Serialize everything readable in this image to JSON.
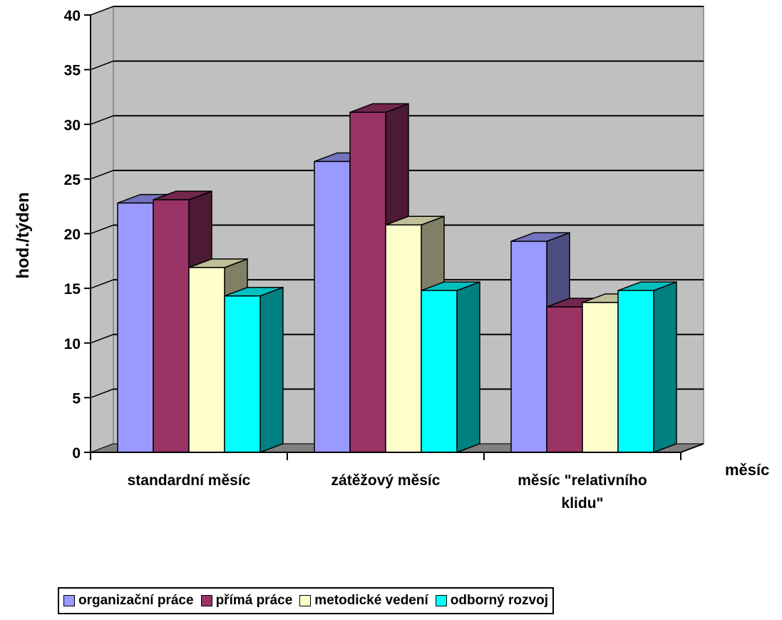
{
  "chart_data": {
    "type": "bar",
    "title": "",
    "xlabel": "měsíc",
    "ylabel": "hod./týden",
    "ylim": [
      0,
      40
    ],
    "yticks": [
      "0",
      "5",
      "10",
      "15",
      "20",
      "25",
      "30",
      "35",
      "40"
    ],
    "categories": [
      "standardní měsíc",
      "zátěžový měsíc",
      "měsíc \"relativního klidu\""
    ],
    "series": [
      {
        "name": "organizační práce",
        "values": [
          22.8,
          26.6,
          19.3
        ],
        "color": "#9999ff",
        "side": "#4d4d80",
        "top": "#7373bf"
      },
      {
        "name": "přímá práce",
        "values": [
          23.1,
          31.1,
          13.3
        ],
        "color": "#993366",
        "side": "#4d1a33",
        "top": "#73264d"
      },
      {
        "name": "metodické vedení",
        "values": [
          16.9,
          20.8,
          13.7
        ],
        "color": "#ffffcc",
        "side": "#808066",
        "top": "#bfbf99"
      },
      {
        "name": "odborný rozvoj",
        "values": [
          14.3,
          14.8,
          14.8
        ],
        "color": "#00ffff",
        "side": "#008080",
        "top": "#00bfbf"
      }
    ],
    "grid": true,
    "legend_position": "bottom",
    "plot_background": "#c0c0c0"
  }
}
